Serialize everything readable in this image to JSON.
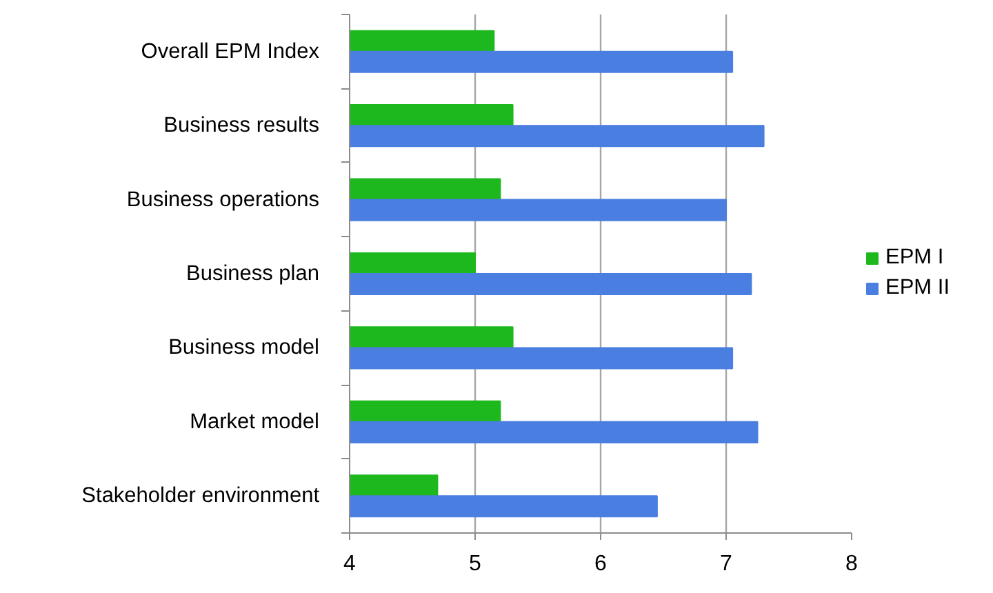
{
  "chart_data": {
    "type": "bar",
    "orientation": "horizontal",
    "categories": [
      "Overall EPM Index",
      "Business results",
      "Business operations",
      "Business plan",
      "Business model",
      "Market model",
      "Stakeholder environment"
    ],
    "series": [
      {
        "name": "EPM I",
        "color": "#1db81d",
        "values": [
          5.15,
          5.3,
          5.2,
          5.0,
          5.3,
          5.2,
          4.7
        ]
      },
      {
        "name": "EPM II",
        "color": "#4a7ee0",
        "values": [
          7.05,
          7.3,
          7.0,
          7.2,
          7.05,
          7.25,
          6.45
        ]
      }
    ],
    "xlim": [
      4,
      8
    ],
    "xticks": [
      4,
      5,
      6,
      7,
      8
    ],
    "grid": "x",
    "legend": "right"
  }
}
